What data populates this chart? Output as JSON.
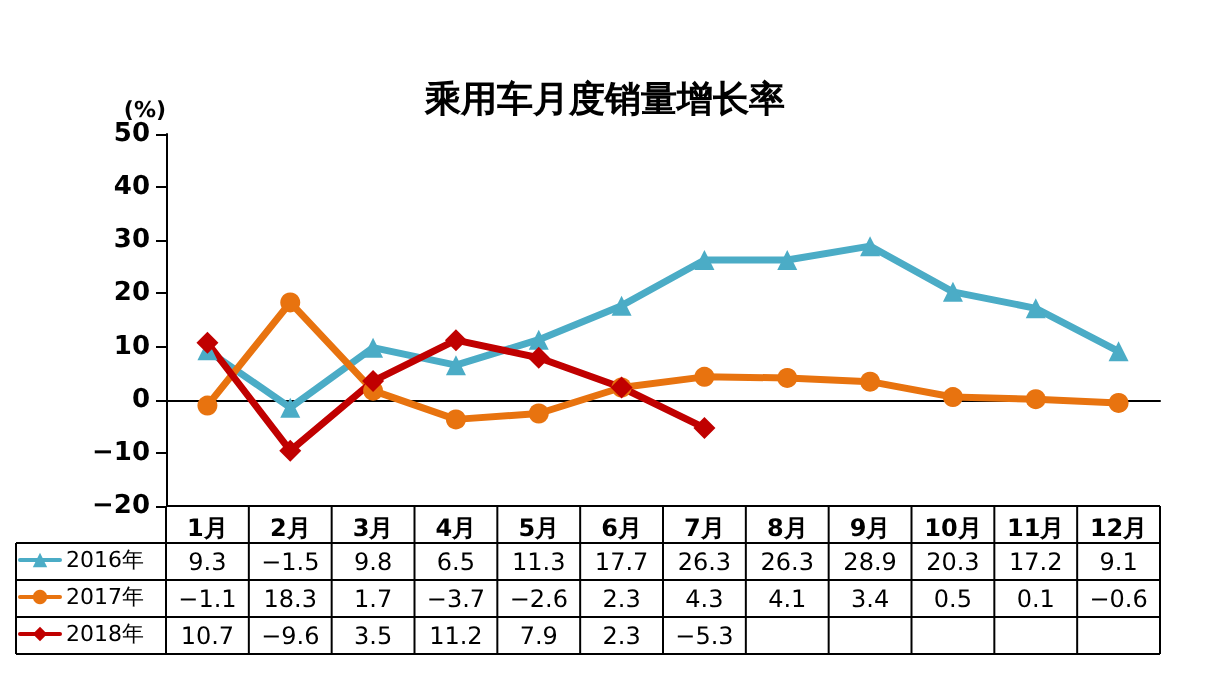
{
  "chart_data": {
    "type": "line",
    "title": "乘用车月度销量增长率",
    "ylabel": "(%)",
    "categories": [
      "1月",
      "2月",
      "3月",
      "4月",
      "5月",
      "6月",
      "7月",
      "8月",
      "9月",
      "10月",
      "11月",
      "12月"
    ],
    "ylim": [
      -20,
      50
    ],
    "yticks": [
      {
        "value": -20,
        "label": "−20"
      },
      {
        "value": -10,
        "label": "−10"
      },
      0,
      10,
      20,
      30,
      40,
      50
    ],
    "legend": "bottom",
    "line_style": "solid",
    "series": [
      {
        "name": "2016年",
        "color": "#4bacc6",
        "marker": "triangle",
        "values": [
          9.3,
          -1.5,
          9.8,
          6.5,
          11.3,
          17.7,
          26.3,
          26.3,
          28.9,
          20.3,
          17.2,
          9.1
        ],
        "value_labels": [
          "9.3",
          "−1.5",
          "9.8",
          "6.5",
          "11.3",
          "17.7",
          "26.3",
          "26.3",
          "28.9",
          "20.3",
          "17.2",
          "9.1"
        ]
      },
      {
        "name": "2017年",
        "color": "#e8730f",
        "marker": "circle",
        "values": [
          -1.1,
          18.3,
          1.7,
          -3.7,
          -2.6,
          2.3,
          4.3,
          4.1,
          3.4,
          0.5,
          0.1,
          -0.6
        ],
        "value_labels": [
          "−1.1",
          "18.3",
          "1.7",
          "−3.7",
          "−2.6",
          "2.3",
          "4.3",
          "4.1",
          "3.4",
          "0.5",
          "0.1",
          "−0.6"
        ]
      },
      {
        "name": "2018年",
        "color": "#c00000",
        "marker": "diamond",
        "values": [
          10.7,
          -9.6,
          3.5,
          11.2,
          7.9,
          2.3,
          -5.3,
          null,
          null,
          null,
          null,
          null
        ],
        "value_labels": [
          "10.7",
          "−9.6",
          "3.5",
          "11.2",
          "7.9",
          "2.3",
          "−5.3",
          null,
          null,
          null,
          null,
          null
        ]
      }
    ]
  }
}
